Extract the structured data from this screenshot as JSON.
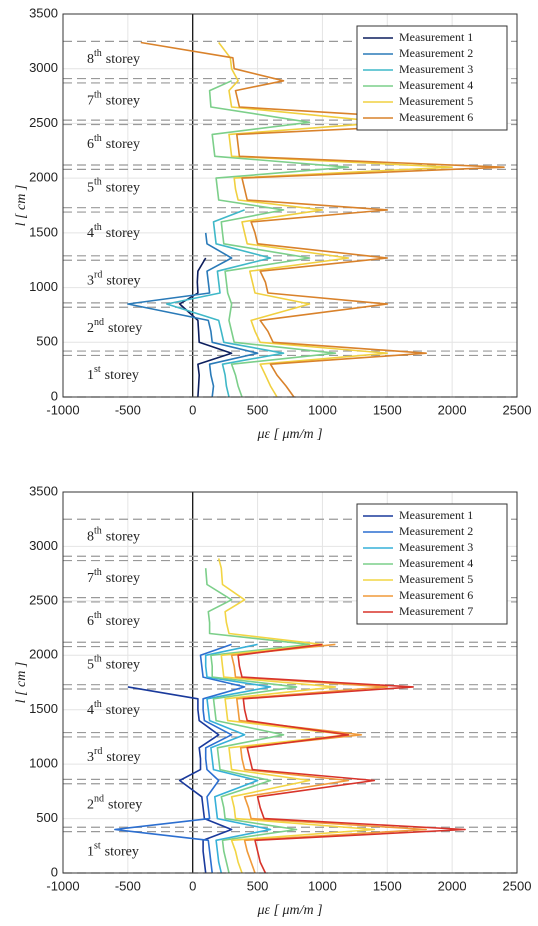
{
  "chart_data": [
    {
      "type": "profile",
      "xlabel": "με [ μm/m ]",
      "ylabel": "l [ cm ]",
      "xlim": [
        -1000,
        2500
      ],
      "xticks": [
        -1000,
        -500,
        0,
        500,
        1000,
        1500,
        2000,
        2500
      ],
      "ylim": [
        0,
        3500
      ],
      "yticks": [
        0,
        500,
        1000,
        1500,
        2000,
        2500,
        3000,
        3500
      ],
      "grid": true,
      "legend": "upper right",
      "l": [
        0,
        100,
        200,
        300,
        400,
        500,
        600,
        700,
        850,
        950,
        1050,
        1150,
        1270,
        1400,
        1500,
        1600,
        1710,
        1800,
        1900,
        2000,
        2100,
        2200,
        2300,
        2400,
        2510,
        2650,
        2800,
        2890,
        3000,
        3100,
        3240
      ],
      "storey_lines": [
        0,
        380,
        420,
        820,
        860,
        1250,
        1290,
        1690,
        1730,
        2080,
        2120,
        2490,
        2530,
        2870,
        2910,
        3250
      ],
      "storeys": [
        {
          "n": "1",
          "sup": "st",
          "text": "storey"
        },
        {
          "n": "2",
          "sup": "nd",
          "text": "storey"
        },
        {
          "n": "3",
          "sup": "rd",
          "text": "storey"
        },
        {
          "n": "4",
          "sup": "th",
          "text": "storey"
        },
        {
          "n": "5",
          "sup": "th",
          "text": "storey"
        },
        {
          "n": "6",
          "sup": "th",
          "text": "storey"
        },
        {
          "n": "7",
          "sup": "th",
          "text": "storey"
        },
        {
          "n": "8",
          "sup": "th",
          "text": "storey"
        }
      ],
      "series": [
        {
          "name": "Measurement 1",
          "color": "#0d1f5e",
          "values": [
            40,
            45,
            50,
            40,
            300,
            50,
            45,
            40,
            -100,
            40,
            35,
            40,
            100,
            null,
            null,
            null,
            null,
            null,
            null,
            null,
            null,
            null,
            null,
            null,
            null,
            null,
            null,
            null,
            null,
            null,
            null
          ]
        },
        {
          "name": "Measurement 2",
          "color": "#2a7ab8",
          "values": [
            150,
            160,
            140,
            130,
            500,
            150,
            140,
            120,
            -500,
            130,
            120,
            110,
            300,
            110,
            100,
            null,
            null,
            null,
            null,
            null,
            null,
            null,
            null,
            null,
            null,
            null,
            null,
            null,
            null,
            null,
            null
          ]
        },
        {
          "name": "Measurement 3",
          "color": "#3fb8c8",
          "values": [
            280,
            260,
            250,
            230,
            700,
            240,
            220,
            200,
            -200,
            210,
            200,
            190,
            600,
            180,
            170,
            160,
            400,
            null,
            null,
            null,
            null,
            null,
            null,
            null,
            null,
            null,
            null,
            null,
            null,
            null,
            null
          ]
        },
        {
          "name": "Measurement 4",
          "color": "#7ccf8a",
          "values": [
            380,
            350,
            330,
            300,
            1100,
            320,
            300,
            280,
            300,
            270,
            260,
            250,
            900,
            240,
            230,
            220,
            700,
            200,
            190,
            180,
            1200,
            170,
            160,
            150,
            900,
            140,
            130,
            300,
            null,
            null,
            null
          ]
        },
        {
          "name": "Measurement 5",
          "color": "#f0d040",
          "values": [
            650,
            600,
            560,
            520,
            1500,
            520,
            480,
            450,
            900,
            480,
            460,
            440,
            1200,
            420,
            400,
            380,
            1000,
            350,
            330,
            320,
            2000,
            300,
            290,
            280,
            1500,
            300,
            280,
            350,
            300,
            290,
            200
          ]
        },
        {
          "name": "Measurement 6",
          "color": "#d9822b",
          "values": [
            780,
            720,
            650,
            600,
            1800,
            620,
            580,
            520,
            1500,
            580,
            560,
            520,
            1500,
            500,
            480,
            450,
            1500,
            420,
            400,
            380,
            2400,
            360,
            350,
            340,
            2300,
            360,
            330,
            700,
            320,
            310,
            -400
          ]
        }
      ]
    },
    {
      "type": "profile",
      "xlabel": "με [ μm/m ]",
      "ylabel": "l [ cm ]",
      "xlim": [
        -1000,
        2500
      ],
      "xticks": [
        -1000,
        -500,
        0,
        500,
        1000,
        1500,
        2000,
        2500
      ],
      "ylim": [
        0,
        3500
      ],
      "yticks": [
        0,
        500,
        1000,
        1500,
        2000,
        2500,
        3000,
        3500
      ],
      "grid": true,
      "legend": "upper right",
      "l": [
        0,
        100,
        200,
        300,
        400,
        500,
        600,
        700,
        850,
        950,
        1050,
        1150,
        1270,
        1400,
        1500,
        1600,
        1710,
        1800,
        1900,
        2000,
        2100,
        2200,
        2300,
        2400,
        2510,
        2650,
        2800,
        2890,
        3000,
        3100,
        3240
      ],
      "storey_lines": [
        0,
        380,
        420,
        820,
        860,
        1250,
        1290,
        1690,
        1730,
        2080,
        2120,
        2490,
        2530,
        2870,
        2910,
        3250
      ],
      "storeys": [
        {
          "n": "1",
          "sup": "st",
          "text": "storey"
        },
        {
          "n": "2",
          "sup": "nd",
          "text": "storey"
        },
        {
          "n": "3",
          "sup": "rd",
          "text": "storey"
        },
        {
          "n": "4",
          "sup": "th",
          "text": "storey"
        },
        {
          "n": "5",
          "sup": "th",
          "text": "storey"
        },
        {
          "n": "6",
          "sup": "th",
          "text": "storey"
        },
        {
          "n": "7",
          "sup": "th",
          "text": "storey"
        },
        {
          "n": "8",
          "sup": "th",
          "text": "storey"
        }
      ],
      "series": [
        {
          "name": "Measurement 1",
          "color": "#1a3a9c",
          "values": [
            100,
            90,
            80,
            80,
            300,
            90,
            80,
            70,
            -100,
            60,
            60,
            50,
            200,
            50,
            40,
            40,
            -500,
            null,
            null,
            null,
            null,
            null,
            null,
            null,
            null,
            null,
            null,
            null,
            null,
            null,
            null
          ]
        },
        {
          "name": "Measurement 2",
          "color": "#2c6fd0",
          "values": [
            150,
            140,
            130,
            120,
            -600,
            130,
            120,
            110,
            200,
            110,
            100,
            100,
            300,
            90,
            80,
            80,
            400,
            80,
            70,
            60,
            300,
            null,
            null,
            null,
            null,
            null,
            null,
            null,
            null,
            null,
            null
          ]
        },
        {
          "name": "Measurement 3",
          "color": "#36b0d8",
          "values": [
            220,
            200,
            190,
            180,
            600,
            190,
            180,
            170,
            500,
            160,
            150,
            140,
            400,
            130,
            120,
            110,
            600,
            110,
            100,
            100,
            500,
            null,
            null,
            null,
            null,
            null,
            null,
            null,
            null,
            null,
            null
          ]
        },
        {
          "name": "Measurement 4",
          "color": "#7ccf8a",
          "values": [
            280,
            260,
            240,
            230,
            800,
            250,
            240,
            220,
            600,
            210,
            200,
            190,
            700,
            180,
            170,
            160,
            800,
            150,
            150,
            140,
            900,
            130,
            130,
            120,
            300,
            110,
            100,
            null,
            null,
            null,
            null
          ]
        },
        {
          "name": "Measurement 5",
          "color": "#f2d544",
          "values": [
            380,
            350,
            330,
            300,
            1400,
            330,
            320,
            300,
            900,
            300,
            290,
            280,
            1200,
            270,
            260,
            250,
            1100,
            240,
            230,
            220,
            1000,
            280,
            260,
            250,
            400,
            230,
            220,
            200,
            null,
            null,
            null
          ]
        },
        {
          "name": "Measurement 6",
          "color": "#f09a3a",
          "values": [
            480,
            450,
            420,
            400,
            1800,
            450,
            430,
            400,
            1200,
            400,
            380,
            370,
            1300,
            360,
            350,
            340,
            1500,
            330,
            320,
            300,
            1100,
            null,
            null,
            null,
            null,
            null,
            null,
            null,
            null,
            null,
            null
          ]
        },
        {
          "name": "Measurement 7",
          "color": "#d8332a",
          "values": [
            560,
            520,
            500,
            480,
            2100,
            550,
            520,
            500,
            1400,
            460,
            440,
            420,
            1200,
            420,
            400,
            390,
            1700,
            380,
            360,
            350,
            1000,
            null,
            null,
            null,
            null,
            null,
            null,
            null,
            null,
            null,
            null
          ]
        }
      ]
    }
  ]
}
